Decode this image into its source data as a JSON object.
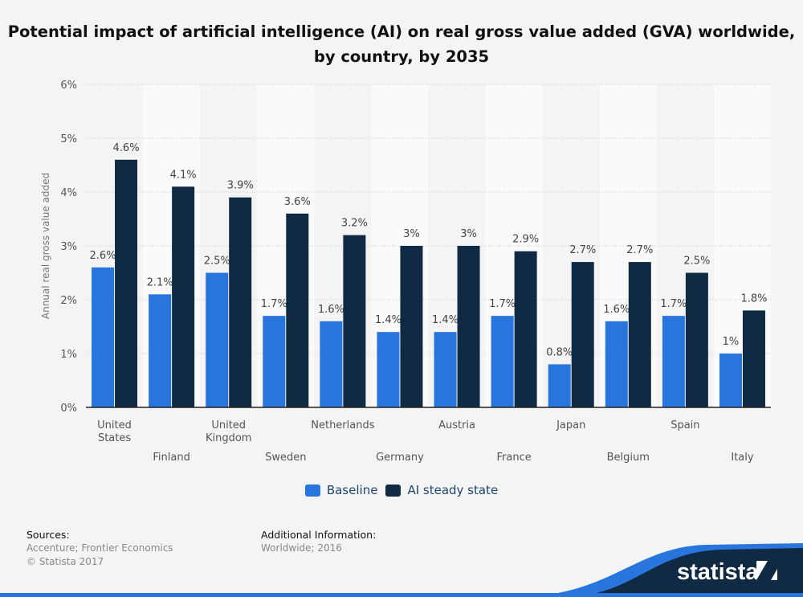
{
  "title": "Potential impact of artificial intelligence (AI) on real gross value added (GVA) worldwide, by country, by 2035",
  "chart_data": {
    "type": "bar",
    "title": "Potential impact of artificial intelligence (AI) on real gross value added (GVA) worldwide, by country, by 2035",
    "ylabel": "Annual real gross value added",
    "xlabel": "",
    "ylim": [
      0,
      6
    ],
    "yticks": [
      "0%",
      "1%",
      "2%",
      "3%",
      "4%",
      "5%",
      "6%"
    ],
    "grid": true,
    "legend_placement": "bottom",
    "categories": [
      "United States",
      "Finland",
      "United Kingdom",
      "Sweden",
      "Netherlands",
      "Germany",
      "Austria",
      "France",
      "Japan",
      "Belgium",
      "Spain",
      "Italy"
    ],
    "series": [
      {
        "name": "Baseline",
        "color": "#2876dd",
        "values": [
          2.6,
          2.1,
          2.5,
          1.7,
          1.6,
          1.4,
          1.4,
          1.7,
          0.8,
          1.6,
          1.7,
          1.0
        ],
        "labels": [
          "2.6%",
          "2.1%",
          "2.5%",
          "1.7%",
          "1.6%",
          "1.4%",
          "1.4%",
          "1.7%",
          "0.8%",
          "1.6%",
          "1.7%",
          "1%"
        ]
      },
      {
        "name": "AI steady state",
        "color": "#0f2a42",
        "values": [
          4.6,
          4.1,
          3.9,
          3.6,
          3.2,
          3.0,
          3.0,
          2.9,
          2.7,
          2.7,
          2.5,
          1.8
        ],
        "labels": [
          "4.6%",
          "4.1%",
          "3.9%",
          "3.6%",
          "3.2%",
          "3%",
          "3%",
          "2.9%",
          "2.7%",
          "2.7%",
          "2.5%",
          "1.8%"
        ]
      }
    ]
  },
  "footer": {
    "sources_label": "Sources:",
    "sources": "Accenture; Frontier Economics",
    "copyright": "© Statista 2017",
    "additional_label": "Additional Information:",
    "additional": "Worldwide; 2016"
  },
  "logo": {
    "text": "statista"
  }
}
